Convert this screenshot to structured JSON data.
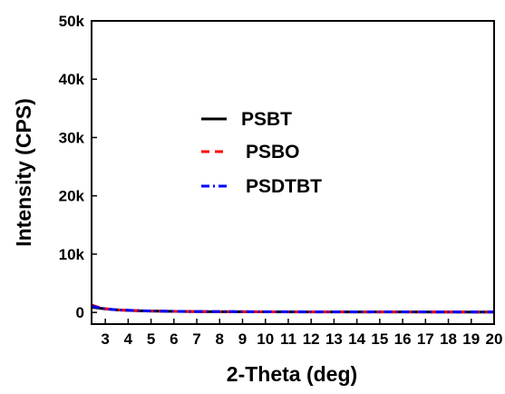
{
  "chart_data": {
    "type": "line",
    "xlabel": "2-Theta (deg)",
    "ylabel": "Intensity (CPS)",
    "xlim": [
      2.4,
      20
    ],
    "ylim": [
      -2000,
      50000
    ],
    "x_ticks": [
      3,
      4,
      5,
      6,
      7,
      8,
      9,
      10,
      11,
      12,
      13,
      14,
      15,
      16,
      17,
      18,
      19,
      20
    ],
    "y_ticks": [
      0,
      10000,
      20000,
      30000,
      40000,
      50000
    ],
    "y_tick_labels": [
      "0",
      "10k",
      "20k",
      "30k",
      "40k",
      "50k"
    ],
    "legend_position": "upper-middle",
    "grid": false,
    "series": [
      {
        "name": "PSBT",
        "color": "#000000",
        "dash": "solid",
        "x": [
          2.4,
          2.6,
          2.8,
          3.0,
          3.3,
          3.6,
          4.0,
          4.5,
          5.0,
          6.0,
          7.0,
          8.0,
          10.0,
          12.0,
          14.0,
          16.0,
          18.0,
          20.0
        ],
        "y": [
          900,
          800,
          700,
          600,
          500,
          420,
          350,
          280,
          230,
          170,
          140,
          120,
          100,
          90,
          80,
          75,
          70,
          65
        ]
      },
      {
        "name": "PSBO",
        "color": "#ff0000",
        "dash": "dash",
        "x": [
          2.4,
          2.6,
          2.8,
          3.0,
          3.3,
          3.6,
          4.0,
          4.5,
          5.0,
          6.0,
          7.0,
          8.0,
          10.0,
          12.0,
          14.0,
          16.0,
          18.0,
          20.0
        ],
        "y": [
          1300,
          1000,
          800,
          650,
          520,
          430,
          360,
          290,
          240,
          180,
          150,
          130,
          110,
          100,
          90,
          85,
          80,
          75
        ]
      },
      {
        "name": "PSDTBT",
        "color": "#0000ff",
        "dash": "dashdot",
        "x": [
          2.4,
          2.6,
          2.8,
          3.0,
          3.3,
          3.6,
          4.0,
          4.5,
          5.0,
          6.0,
          7.0,
          8.0,
          10.0,
          12.0,
          14.0,
          16.0,
          18.0,
          20.0
        ],
        "y": [
          1100,
          900,
          750,
          620,
          510,
          430,
          370,
          300,
          250,
          190,
          160,
          140,
          120,
          110,
          100,
          95,
          90,
          85
        ]
      }
    ]
  }
}
